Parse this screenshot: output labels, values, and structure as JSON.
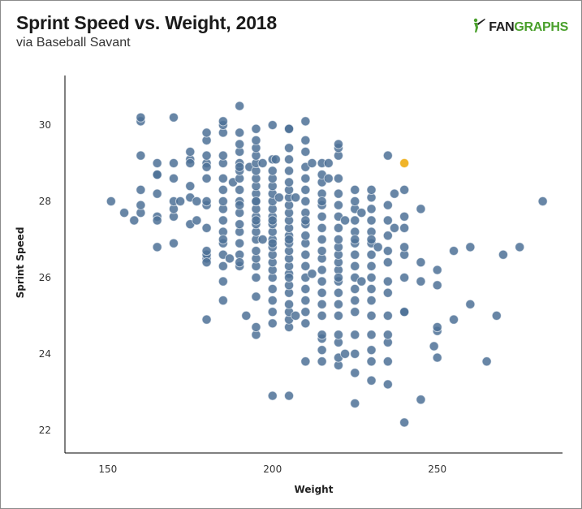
{
  "header": {
    "title": "Sprint Speed vs. Weight, 2018",
    "subtitle": "via Baseball Savant"
  },
  "logo": {
    "text_fan": "FAN",
    "text_graphs": "GRAPHS",
    "color_fan": "#1f1f1f",
    "color_graphs": "#4aa02c",
    "icon": "batter-silhouette-icon"
  },
  "colors": {
    "point": "#4e7197",
    "highlight": "#f0b429",
    "axis": "#000000"
  },
  "chart_data": {
    "type": "scatter",
    "title": "Sprint Speed vs. Weight, 2018",
    "subtitle": "via Baseball Savant",
    "xlabel": "Weight",
    "ylabel": "Sprint Speed",
    "xlim": [
      137,
      288
    ],
    "ylim": [
      21.4,
      31.3
    ],
    "xticks": [
      150,
      200,
      250
    ],
    "yticks": [
      22,
      24,
      26,
      28,
      30
    ],
    "grid": false,
    "legend": "none",
    "highlight": {
      "x": 240,
      "y": 29.0
    },
    "points": [
      [
        151,
        28.0
      ],
      [
        155,
        27.7
      ],
      [
        158,
        27.5
      ],
      [
        160,
        27.7
      ],
      [
        160,
        28.3
      ],
      [
        160,
        27.9
      ],
      [
        160,
        29.2
      ],
      [
        160,
        30.1
      ],
      [
        160,
        30.2
      ],
      [
        165,
        27.6
      ],
      [
        165,
        27.5
      ],
      [
        165,
        28.2
      ],
      [
        165,
        28.7
      ],
      [
        165,
        28.7
      ],
      [
        165,
        29.0
      ],
      [
        165,
        26.8
      ],
      [
        170,
        26.9
      ],
      [
        170,
        27.6
      ],
      [
        170,
        27.8
      ],
      [
        170,
        28.0
      ],
      [
        170,
        28.6
      ],
      [
        170,
        29.0
      ],
      [
        170,
        30.2
      ],
      [
        172,
        28.0
      ],
      [
        175,
        27.4
      ],
      [
        175,
        28.4
      ],
      [
        175,
        29.1
      ],
      [
        175,
        29.3
      ],
      [
        175,
        29.0
      ],
      [
        175,
        28.1
      ],
      [
        177,
        27.5
      ],
      [
        177,
        28.0
      ],
      [
        180,
        24.9
      ],
      [
        180,
        26.5
      ],
      [
        180,
        26.6
      ],
      [
        180,
        26.7
      ],
      [
        180,
        26.4
      ],
      [
        180,
        27.3
      ],
      [
        180,
        27.9
      ],
      [
        180,
        28.6
      ],
      [
        180,
        29.0
      ],
      [
        180,
        29.2
      ],
      [
        180,
        29.6
      ],
      [
        180,
        29.8
      ],
      [
        180,
        28.0
      ],
      [
        180,
        28.9
      ],
      [
        185,
        25.4
      ],
      [
        185,
        25.9
      ],
      [
        185,
        26.3
      ],
      [
        185,
        26.6
      ],
      [
        185,
        26.9
      ],
      [
        185,
        27.2
      ],
      [
        185,
        27.5
      ],
      [
        185,
        27.8
      ],
      [
        185,
        28.0
      ],
      [
        185,
        28.3
      ],
      [
        185,
        28.6
      ],
      [
        185,
        29.0
      ],
      [
        185,
        29.2
      ],
      [
        185,
        29.8
      ],
      [
        185,
        30.0
      ],
      [
        185,
        30.1
      ],
      [
        185,
        27.0
      ],
      [
        187,
        26.5
      ],
      [
        188,
        28.5
      ],
      [
        190,
        26.3
      ],
      [
        190,
        26.6
      ],
      [
        190,
        26.9
      ],
      [
        190,
        27.2
      ],
      [
        190,
        27.4
      ],
      [
        190,
        27.7
      ],
      [
        190,
        28.0
      ],
      [
        190,
        28.3
      ],
      [
        190,
        28.6
      ],
      [
        190,
        28.8
      ],
      [
        190,
        29.0
      ],
      [
        190,
        29.3
      ],
      [
        190,
        29.5
      ],
      [
        190,
        29.8
      ],
      [
        190,
        30.5
      ],
      [
        190,
        26.4
      ],
      [
        190,
        27.9
      ],
      [
        190,
        28.9
      ],
      [
        192,
        25.0
      ],
      [
        193,
        28.9
      ],
      [
        195,
        24.5
      ],
      [
        195,
        24.7
      ],
      [
        195,
        25.5
      ],
      [
        195,
        26.0
      ],
      [
        195,
        26.3
      ],
      [
        195,
        26.5
      ],
      [
        195,
        26.7
      ],
      [
        195,
        27.0
      ],
      [
        195,
        27.2
      ],
      [
        195,
        27.4
      ],
      [
        195,
        27.6
      ],
      [
        195,
        27.8
      ],
      [
        195,
        28.0
      ],
      [
        195,
        28.2
      ],
      [
        195,
        28.4
      ],
      [
        195,
        28.6
      ],
      [
        195,
        28.8
      ],
      [
        195,
        29.0
      ],
      [
        195,
        29.2
      ],
      [
        195,
        29.4
      ],
      [
        195,
        29.6
      ],
      [
        195,
        29.9
      ],
      [
        195,
        27.5
      ],
      [
        195,
        28.0
      ],
      [
        197,
        27.0
      ],
      [
        197,
        29.0
      ],
      [
        200,
        22.9
      ],
      [
        200,
        24.8
      ],
      [
        200,
        25.1
      ],
      [
        200,
        25.4
      ],
      [
        200,
        25.7
      ],
      [
        200,
        26.0
      ],
      [
        200,
        26.2
      ],
      [
        200,
        26.4
      ],
      [
        200,
        26.6
      ],
      [
        200,
        26.8
      ],
      [
        200,
        27.0
      ],
      [
        200,
        27.2
      ],
      [
        200,
        27.4
      ],
      [
        200,
        27.6
      ],
      [
        200,
        27.8
      ],
      [
        200,
        28.0
      ],
      [
        200,
        28.2
      ],
      [
        200,
        28.4
      ],
      [
        200,
        28.6
      ],
      [
        200,
        28.8
      ],
      [
        200,
        29.1
      ],
      [
        200,
        30.0
      ],
      [
        200,
        26.9
      ],
      [
        200,
        27.5
      ],
      [
        201,
        29.1
      ],
      [
        202,
        28.1
      ],
      [
        205,
        22.9
      ],
      [
        205,
        24.7
      ],
      [
        205,
        24.9
      ],
      [
        205,
        25.1
      ],
      [
        205,
        25.3
      ],
      [
        205,
        25.6
      ],
      [
        205,
        25.8
      ],
      [
        205,
        26.1
      ],
      [
        205,
        26.3
      ],
      [
        205,
        26.5
      ],
      [
        205,
        26.7
      ],
      [
        205,
        26.9
      ],
      [
        205,
        27.1
      ],
      [
        205,
        27.3
      ],
      [
        205,
        27.5
      ],
      [
        205,
        27.7
      ],
      [
        205,
        27.9
      ],
      [
        205,
        28.1
      ],
      [
        205,
        28.3
      ],
      [
        205,
        28.5
      ],
      [
        205,
        28.8
      ],
      [
        205,
        29.1
      ],
      [
        205,
        29.4
      ],
      [
        205,
        29.9
      ],
      [
        205,
        29.9
      ],
      [
        205,
        27.0
      ],
      [
        205,
        26.0
      ],
      [
        207,
        25.0
      ],
      [
        207,
        28.1
      ],
      [
        210,
        23.8
      ],
      [
        210,
        24.8
      ],
      [
        210,
        25.1
      ],
      [
        210,
        25.4
      ],
      [
        210,
        25.7
      ],
      [
        210,
        26.0
      ],
      [
        210,
        26.3
      ],
      [
        210,
        26.6
      ],
      [
        210,
        26.9
      ],
      [
        210,
        27.1
      ],
      [
        210,
        27.4
      ],
      [
        210,
        27.7
      ],
      [
        210,
        28.0
      ],
      [
        210,
        28.3
      ],
      [
        210,
        28.6
      ],
      [
        210,
        28.9
      ],
      [
        210,
        29.3
      ],
      [
        210,
        29.6
      ],
      [
        210,
        30.1
      ],
      [
        210,
        27.5
      ],
      [
        212,
        26.1
      ],
      [
        212,
        29.0
      ],
      [
        215,
        23.8
      ],
      [
        215,
        24.1
      ],
      [
        215,
        24.4
      ],
      [
        215,
        24.5
      ],
      [
        215,
        25.0
      ],
      [
        215,
        25.3
      ],
      [
        215,
        25.6
      ],
      [
        215,
        25.9
      ],
      [
        215,
        26.2
      ],
      [
        215,
        26.5
      ],
      [
        215,
        26.7
      ],
      [
        215,
        27.0
      ],
      [
        215,
        27.3
      ],
      [
        215,
        27.6
      ],
      [
        215,
        27.9
      ],
      [
        215,
        28.2
      ],
      [
        215,
        28.5
      ],
      [
        215,
        28.7
      ],
      [
        215,
        29.0
      ],
      [
        215,
        28.0
      ],
      [
        217,
        28.6
      ],
      [
        217,
        29.0
      ],
      [
        220,
        23.7
      ],
      [
        220,
        23.9
      ],
      [
        220,
        24.3
      ],
      [
        220,
        24.5
      ],
      [
        220,
        25.0
      ],
      [
        220,
        25.3
      ],
      [
        220,
        25.6
      ],
      [
        220,
        25.9
      ],
      [
        220,
        26.2
      ],
      [
        220,
        26.4
      ],
      [
        220,
        26.6
      ],
      [
        220,
        26.8
      ],
      [
        220,
        27.0
      ],
      [
        220,
        27.3
      ],
      [
        220,
        27.6
      ],
      [
        220,
        27.9
      ],
      [
        220,
        28.2
      ],
      [
        220,
        28.6
      ],
      [
        220,
        29.2
      ],
      [
        220,
        29.4
      ],
      [
        220,
        29.5
      ],
      [
        220,
        26.0
      ],
      [
        222,
        24.0
      ],
      [
        222,
        27.5
      ],
      [
        225,
        22.7
      ],
      [
        225,
        23.5
      ],
      [
        225,
        24.0
      ],
      [
        225,
        24.5
      ],
      [
        225,
        25.1
      ],
      [
        225,
        25.4
      ],
      [
        225,
        25.7
      ],
      [
        225,
        26.0
      ],
      [
        225,
        26.3
      ],
      [
        225,
        26.6
      ],
      [
        225,
        26.9
      ],
      [
        225,
        27.2
      ],
      [
        225,
        27.5
      ],
      [
        225,
        27.8
      ],
      [
        225,
        28.0
      ],
      [
        225,
        28.3
      ],
      [
        225,
        27.0
      ],
      [
        227,
        25.9
      ],
      [
        227,
        27.7
      ],
      [
        230,
        23.3
      ],
      [
        230,
        23.8
      ],
      [
        230,
        24.1
      ],
      [
        230,
        24.5
      ],
      [
        230,
        25.0
      ],
      [
        230,
        25.4
      ],
      [
        230,
        25.7
      ],
      [
        230,
        26.0
      ],
      [
        230,
        26.3
      ],
      [
        230,
        26.6
      ],
      [
        230,
        26.9
      ],
      [
        230,
        27.2
      ],
      [
        230,
        27.5
      ],
      [
        230,
        27.8
      ],
      [
        230,
        28.1
      ],
      [
        230,
        28.3
      ],
      [
        230,
        27.0
      ],
      [
        232,
        26.8
      ],
      [
        235,
        23.2
      ],
      [
        235,
        23.8
      ],
      [
        235,
        24.3
      ],
      [
        235,
        24.5
      ],
      [
        235,
        25.0
      ],
      [
        235,
        25.6
      ],
      [
        235,
        25.9
      ],
      [
        235,
        26.4
      ],
      [
        235,
        26.7
      ],
      [
        235,
        27.1
      ],
      [
        235,
        27.5
      ],
      [
        235,
        27.9
      ],
      [
        235,
        29.2
      ],
      [
        237,
        27.3
      ],
      [
        237,
        28.2
      ],
      [
        240,
        22.2
      ],
      [
        240,
        25.1
      ],
      [
        240,
        26.0
      ],
      [
        240,
        26.6
      ],
      [
        240,
        26.8
      ],
      [
        240,
        27.3
      ],
      [
        240,
        27.6
      ],
      [
        240,
        28.3
      ],
      [
        240,
        25.1
      ],
      [
        245,
        22.8
      ],
      [
        245,
        25.9
      ],
      [
        245,
        26.4
      ],
      [
        245,
        27.8
      ],
      [
        249,
        24.2
      ],
      [
        250,
        23.9
      ],
      [
        250,
        24.6
      ],
      [
        250,
        24.7
      ],
      [
        250,
        25.8
      ],
      [
        250,
        26.2
      ],
      [
        255,
        24.9
      ],
      [
        255,
        26.7
      ],
      [
        260,
        25.3
      ],
      [
        260,
        26.8
      ],
      [
        265,
        23.8
      ],
      [
        268,
        25.0
      ],
      [
        270,
        26.6
      ],
      [
        275,
        26.8
      ],
      [
        282,
        28.0
      ]
    ]
  }
}
